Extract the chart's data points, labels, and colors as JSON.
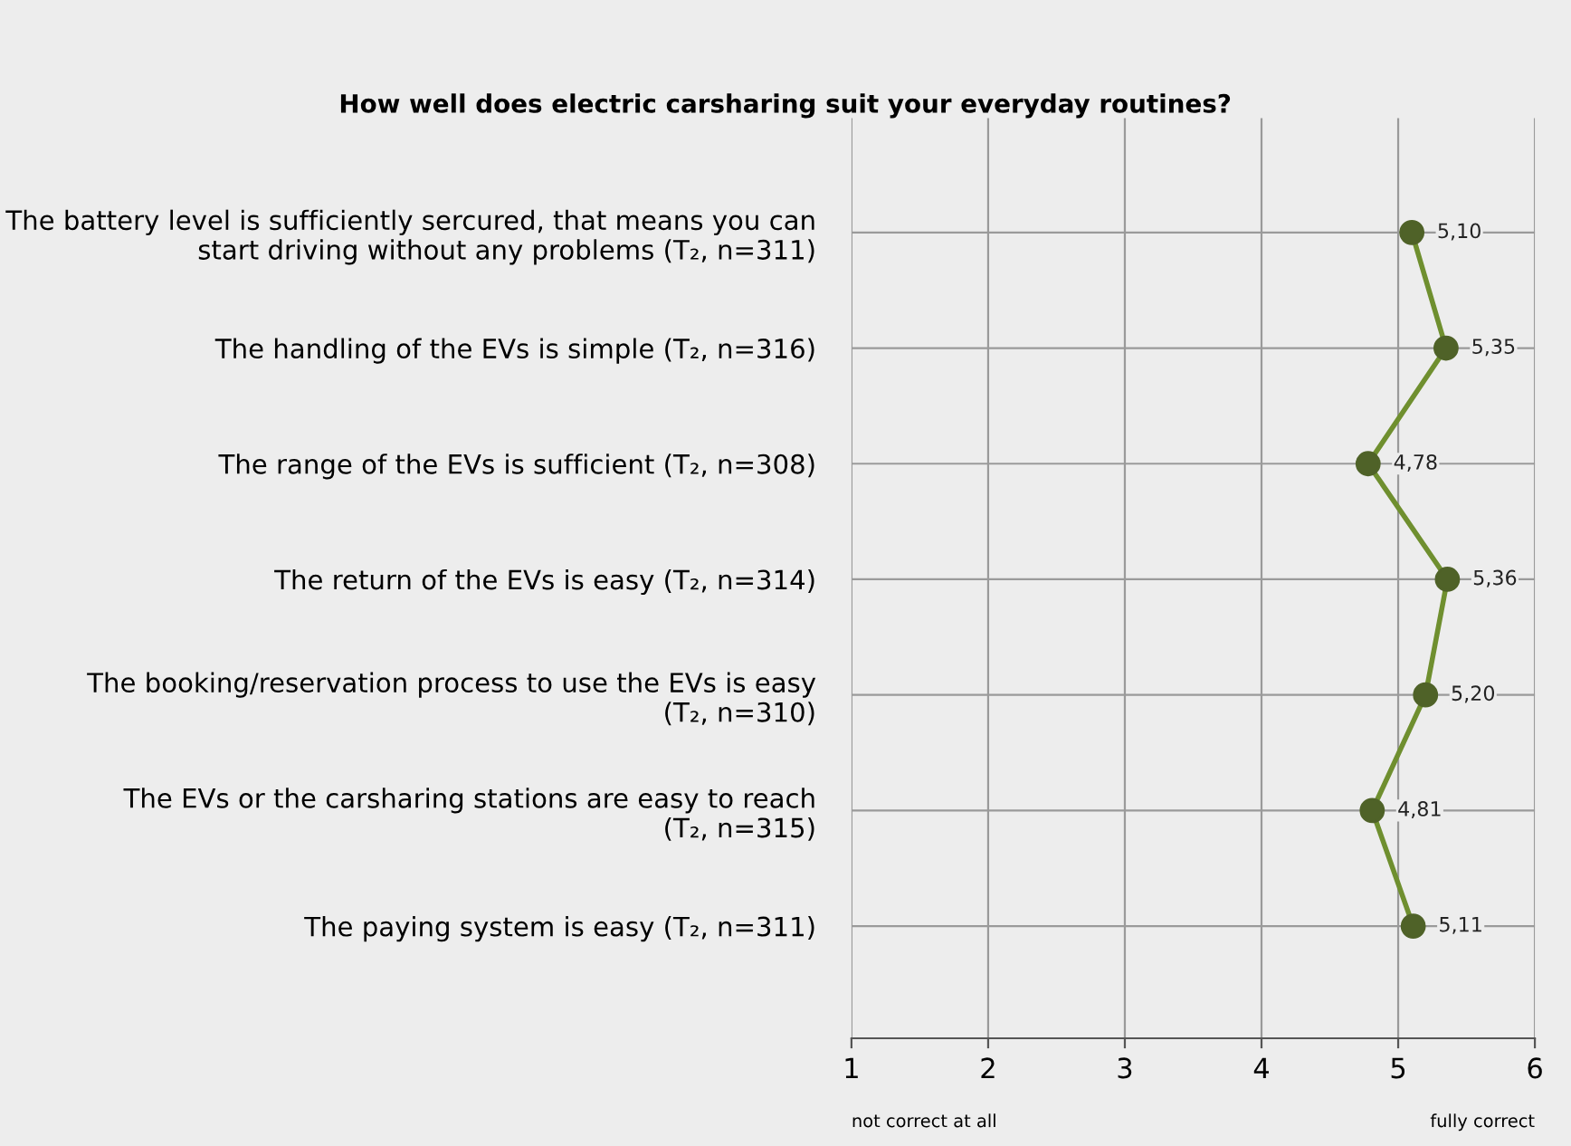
{
  "chart_data": {
    "type": "line",
    "orientation": "horizontal",
    "title": "How well does electric carsharing suit your everyday routines?",
    "categories": [
      "The battery level is sufficiently sercured, that means you can\nstart driving without any problems (T₂, n=311)",
      "The handling of the EVs is simple (T₂, n=316)",
      "The range of the EVs is sufficient (T₂, n=308)",
      "The return of the EVs is easy (T₂, n=314)",
      "The booking/reservation process to use the EVs is easy\n(T₂, n=310)",
      "The EVs or the carsharing stations are easy to reach\n(T₂, n=315)",
      "The paying system is easy (T₂, n=311)"
    ],
    "series": [
      {
        "color": "#6f8f2f",
        "values": [
          5.1,
          5.35,
          4.78,
          5.36,
          5.2,
          4.81,
          5.11
        ],
        "value_labels": [
          "5,10",
          "5,35",
          "4,78",
          "5,36",
          "5,20",
          "4,81",
          "5,11"
        ]
      }
    ],
    "xlim": [
      1,
      6
    ],
    "xticks": [
      1,
      2,
      3,
      4,
      5,
      6
    ],
    "annotations": [
      "not correct at all",
      "fully correct"
    ],
    "grid": true,
    "marker": "circle",
    "line_style": "solid",
    "legend": false
  }
}
